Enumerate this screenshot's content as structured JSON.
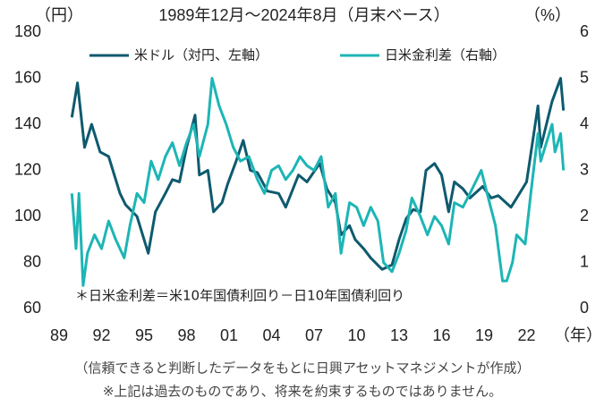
{
  "chart_data": {
    "type": "line",
    "left_unit": "（円）",
    "title": "1989年12月～2024年8月（月末ベース）",
    "right_unit": "（%）",
    "x_unit": "（年）",
    "annotation": "＊日米金利差＝米10年国債利回り－日10年国債利回り",
    "footnotes": [
      "（信頼できると判断したデータをもとに日興アセットマネジメントが作成）",
      "※上記は過去のものであり、将来を約束するものではありません。"
    ],
    "xlim": [
      1989,
      2025
    ],
    "xticks": [
      {
        "value": 1989,
        "label": "89"
      },
      {
        "value": 1992,
        "label": "92"
      },
      {
        "value": 1995,
        "label": "95"
      },
      {
        "value": 1998,
        "label": "98"
      },
      {
        "value": 2001,
        "label": "01"
      },
      {
        "value": 2004,
        "label": "04"
      },
      {
        "value": 2007,
        "label": "07"
      },
      {
        "value": 2010,
        "label": "10"
      },
      {
        "value": 2013,
        "label": "13"
      },
      {
        "value": 2016,
        "label": "16"
      },
      {
        "value": 2019,
        "label": "19"
      },
      {
        "value": 2022,
        "label": "22"
      }
    ],
    "ylim": [
      60,
      180
    ],
    "yticks": [
      60,
      80,
      100,
      120,
      140,
      160,
      180
    ],
    "y2lim": [
      0,
      6
    ],
    "y2ticks": [
      0,
      1,
      2,
      3,
      4,
      5,
      6
    ],
    "grid": false,
    "series": [
      {
        "name": "米ドル（対円、左軸）",
        "color": "#0e5a6e",
        "x": [
          1989.9,
          1990.3,
          1990.8,
          1991.3,
          1991.9,
          1992.5,
          1993.3,
          1993.7,
          1994.5,
          1995.3,
          1995.8,
          1996.5,
          1997.0,
          1997.5,
          1998.0,
          1998.6,
          1998.9,
          1999.5,
          1999.9,
          2000.5,
          2000.9,
          2001.5,
          2002.0,
          2002.5,
          2003.0,
          2003.7,
          2004.5,
          2005.0,
          2005.9,
          2006.5,
          2007.4,
          2007.9,
          2008.5,
          2008.9,
          2009.5,
          2009.9,
          2010.5,
          2011.0,
          2011.8,
          2012.5,
          2013.0,
          2013.5,
          2014.0,
          2014.5,
          2014.9,
          2015.5,
          2016.0,
          2016.5,
          2016.9,
          2017.5,
          2018.0,
          2018.9,
          2019.5,
          2020.0,
          2020.9,
          2021.5,
          2022.0,
          2022.8,
          2023.0,
          2023.8,
          2024.4,
          2024.6
        ],
        "values": [
          143,
          158,
          130,
          140,
          128,
          126,
          110,
          105,
          100,
          84,
          102,
          110,
          116,
          115,
          130,
          144,
          118,
          120,
          102,
          106,
          114,
          124,
          133,
          120,
          119,
          111,
          110,
          104,
          118,
          115,
          123,
          112,
          106,
          92,
          96,
          90,
          86,
          82,
          77,
          79,
          90,
          99,
          103,
          102,
          120,
          123,
          118,
          102,
          115,
          112,
          108,
          113,
          108,
          109,
          104,
          110,
          115,
          148,
          130,
          150,
          160,
          146
        ]
      },
      {
        "name": "日米金利差（右軸）",
        "color": "#1db5b5",
        "axis": "y2",
        "x": [
          1989.9,
          1990.2,
          1990.4,
          1990.7,
          1991.0,
          1991.5,
          1992.0,
          1992.5,
          1993.0,
          1993.6,
          1994.0,
          1994.5,
          1995.0,
          1995.5,
          1996.0,
          1996.5,
          1997.0,
          1997.5,
          1998.0,
          1998.5,
          1998.9,
          1999.5,
          1999.8,
          2000.3,
          2000.8,
          2001.3,
          2001.8,
          2002.4,
          2003.0,
          2003.5,
          2004.0,
          2004.5,
          2005.0,
          2005.5,
          2006.0,
          2006.5,
          2007.0,
          2007.5,
          2008.0,
          2008.5,
          2008.9,
          2009.5,
          2010.0,
          2010.5,
          2011.0,
          2011.5,
          2011.9,
          2012.5,
          2013.0,
          2013.5,
          2013.9,
          2014.5,
          2015.0,
          2015.5,
          2016.0,
          2016.5,
          2016.9,
          2017.5,
          2018.0,
          2018.8,
          2019.3,
          2019.8,
          2020.3,
          2020.6,
          2021.0,
          2021.3,
          2021.9,
          2022.3,
          2022.8,
          2023.0,
          2023.8,
          2024.0,
          2024.4,
          2024.6
        ],
        "values": [
          2.5,
          1.3,
          2.5,
          0.5,
          1.2,
          1.6,
          1.3,
          1.9,
          1.5,
          1.1,
          1.8,
          2.5,
          2.3,
          3.2,
          2.8,
          3.3,
          3.6,
          3.1,
          3.6,
          4.0,
          3.3,
          4.0,
          5.0,
          4.4,
          4.0,
          3.5,
          3.2,
          3.3,
          2.8,
          2.5,
          3.0,
          3.1,
          2.8,
          3.0,
          3.3,
          3.1,
          3.0,
          3.3,
          2.2,
          2.5,
          1.2,
          2.3,
          2.2,
          1.8,
          2.2,
          1.9,
          1.0,
          0.8,
          1.2,
          1.7,
          2.4,
          2.0,
          1.6,
          2.0,
          1.8,
          1.4,
          2.3,
          2.2,
          2.5,
          3.0,
          2.4,
          1.8,
          0.6,
          0.6,
          1.0,
          1.6,
          1.4,
          2.5,
          3.8,
          3.2,
          4.0,
          3.4,
          3.8,
          3.0
        ]
      }
    ]
  }
}
